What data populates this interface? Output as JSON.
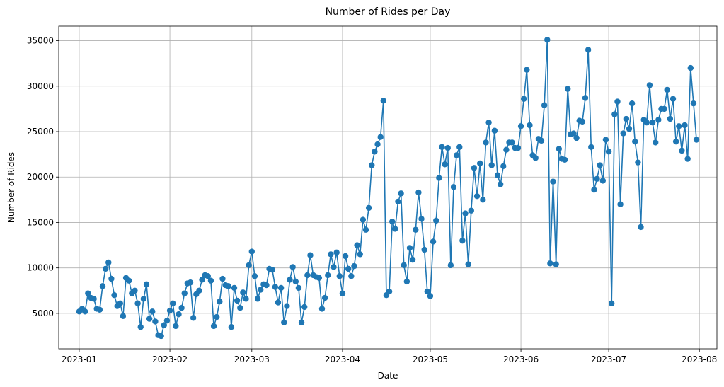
{
  "chart_data": {
    "type": "line",
    "title": "Number of Rides per Day",
    "xlabel": "Date",
    "ylabel": "Number of Rides",
    "x_tick_labels": [
      "2023-01",
      "2023-02",
      "2023-03",
      "2023-04",
      "2023-05",
      "2023-06",
      "2023-07",
      "2023-08"
    ],
    "y_ticks": [
      5000,
      10000,
      15000,
      20000,
      25000,
      30000,
      35000
    ],
    "ylim": [
      1100,
      36600
    ],
    "xlim": [
      "2022-12-25",
      "2023-08-07"
    ],
    "grid": true,
    "color": "#1f77b4",
    "start_date": "2023-01-01",
    "series": [
      {
        "values": [
          5200,
          5500,
          5200,
          7200,
          6700,
          6600,
          5500,
          5400,
          8000,
          9900,
          10600,
          8800,
          7000,
          5800,
          6100,
          4700,
          8900,
          8600,
          7200,
          7500,
          6100,
          3500,
          6600,
          8200,
          4400,
          5200,
          4100,
          2600,
          2500,
          3700,
          4200,
          5300,
          6100,
          3600,
          4900,
          5600,
          7200,
          8300,
          8400,
          4500,
          7100,
          7500,
          8700,
          9200,
          9100,
          8600,
          3600,
          4600,
          6300,
          8800,
          8100,
          8000,
          3500,
          7800,
          6400,
          5600,
          7300,
          6600,
          10300,
          11800,
          9100,
          6600,
          7600,
          8200,
          8100,
          9900,
          9800,
          7900,
          6200,
          7800,
          4000,
          5800,
          8700,
          10100,
          8500,
          7800,
          4000,
          5700,
          9200,
          11400,
          9200,
          9000,
          8900,
          5500,
          6700,
          9200,
          11500,
          10100,
          11700,
          9100,
          7200,
          11300,
          9900,
          9100,
          10200,
          12500,
          11500,
          15300,
          14200,
          16600,
          21300,
          22800,
          23600,
          24400,
          28400,
          7000,
          7400,
          15100,
          14300,
          17300,
          18200,
          10300,
          8500,
          12200,
          10900,
          14200,
          18300,
          15400,
          12000,
          7400,
          6900,
          12900,
          15200,
          19900,
          23300,
          21400,
          23200,
          10300,
          18900,
          22400,
          23300,
          13000,
          16000,
          10400,
          16300,
          21000,
          17900,
          21500,
          17500,
          23800,
          26000,
          21300,
          25100,
          20200,
          19200,
          21200,
          23000,
          23800,
          23800,
          23200,
          23200,
          25600,
          28600,
          31800,
          25700,
          22400,
          22100,
          24200,
          24000,
          27900,
          35100,
          10500,
          19500,
          10400,
          23100,
          22000,
          21900,
          29700,
          24700,
          24800,
          24300,
          26200,
          26100,
          28700,
          34000,
          23300,
          18600,
          19800,
          21300,
          19600,
          24100,
          22800,
          6100,
          26900,
          28300,
          17000,
          24800,
          26400,
          25300,
          28100,
          23900,
          21600,
          14500,
          26300,
          26000,
          30100,
          26000,
          23800,
          26300,
          27500,
          27500,
          29600,
          26400,
          28600,
          23900,
          25600,
          22900,
          25700,
          22000,
          32000,
          28100,
          24100
        ]
      }
    ]
  }
}
